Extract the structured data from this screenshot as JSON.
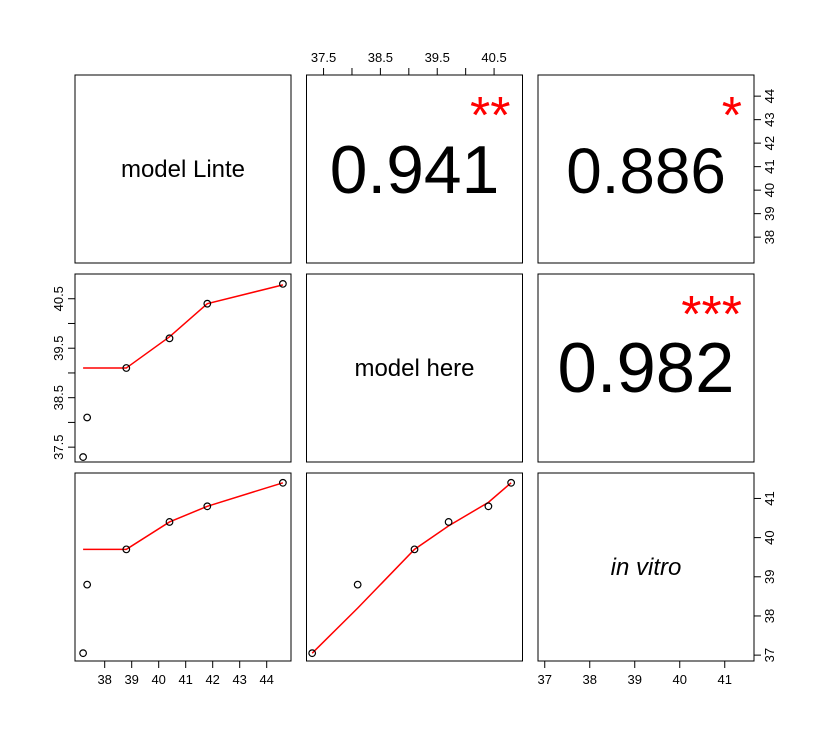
{
  "chart_data": {
    "type": "scatter_matrix",
    "variables": [
      {
        "name": "model Linte",
        "italic": false,
        "values": [
          37.2,
          37.35,
          38.8,
          40.4,
          41.8,
          44.6
        ],
        "lim": [
          36.9,
          44.9
        ],
        "ticks": [
          38,
          39,
          40,
          41,
          42,
          43,
          44
        ],
        "label_every": 1
      },
      {
        "name": "model here",
        "italic": false,
        "values": [
          37.3,
          38.1,
          39.1,
          39.7,
          40.4,
          40.8
        ],
        "lim": [
          37.2,
          41.0
        ],
        "ticks": [
          37.5,
          38,
          38.5,
          39,
          39.5,
          40,
          40.5
        ],
        "label_every": 2
      },
      {
        "name": "in vitro",
        "italic": true,
        "values": [
          37.05,
          38.8,
          39.7,
          40.4,
          40.8,
          41.4
        ],
        "lim": [
          36.85,
          41.65
        ],
        "ticks": [
          37,
          38,
          39,
          40,
          41
        ],
        "label_every": 1
      }
    ],
    "correlations": [
      {
        "value": 0.941,
        "stars": "**"
      },
      {
        "value": 0.886,
        "stars": "*"
      },
      {
        "value": 0.982,
        "stars": "***"
      }
    ],
    "smooths": [
      {
        "values": [
          39.1,
          39.1,
          39.1,
          39.73,
          40.4,
          40.78
        ]
      },
      {
        "values": [
          39.7,
          39.7,
          39.7,
          40.4,
          40.8,
          41.4
        ]
      },
      {
        "values": [
          37.05,
          38.2,
          39.7,
          40.3,
          40.9,
          41.4
        ]
      }
    ],
    "point_color": "#000000",
    "smooth_color": "#ff0000",
    "star_color": "#ff0000"
  }
}
